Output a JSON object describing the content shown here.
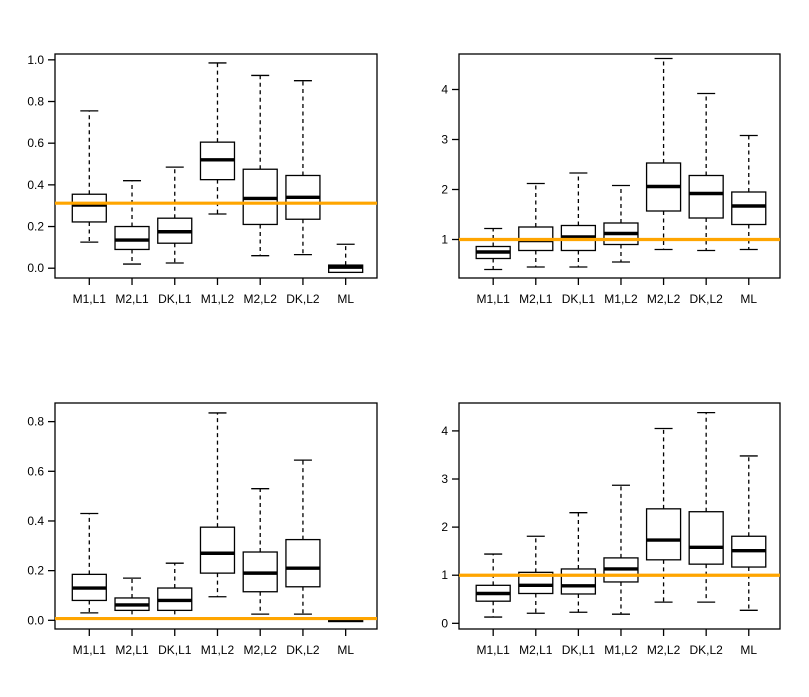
{
  "figure": {
    "background_color": "#ffffff",
    "axis_color": "#000000",
    "box_fill_color": "#ffffff",
    "box_stroke_color": "#000000",
    "median_color": "#000000",
    "reference_line_color": "#FFA500"
  },
  "chart_data": [
    {
      "type": "boxplot",
      "position": "top-left",
      "title": "",
      "xlabel": "",
      "ylabel": "",
      "grid": false,
      "legend": false,
      "categories": [
        "M1,L1",
        "M2,L1",
        "DK,L1",
        "M1,L2",
        "M2,L2",
        "DK,L2",
        "ML"
      ],
      "ytick_values": [
        0.0,
        0.2,
        0.4,
        0.6,
        0.8,
        1.0
      ],
      "ytick_labels": [
        "0.0",
        "0.2",
        "0.4",
        "0.6",
        "0.8",
        "1.0"
      ],
      "ylim": [
        -0.047,
        1.028
      ],
      "reference_line": 0.312,
      "boxes": [
        {
          "label": "M1,L1",
          "lower_whisker": 0.125,
          "q1": 0.222,
          "median": 0.303,
          "q3": 0.355,
          "upper_whisker": 0.755
        },
        {
          "label": "M2,L1",
          "lower_whisker": 0.02,
          "q1": 0.09,
          "median": 0.135,
          "q3": 0.2,
          "upper_whisker": 0.42
        },
        {
          "label": "DK,L1",
          "lower_whisker": 0.025,
          "q1": 0.12,
          "median": 0.175,
          "q3": 0.24,
          "upper_whisker": 0.485
        },
        {
          "label": "M1,L2",
          "lower_whisker": 0.26,
          "q1": 0.425,
          "median": 0.52,
          "q3": 0.605,
          "upper_whisker": 0.985
        },
        {
          "label": "M2,L2",
          "lower_whisker": 0.06,
          "q1": 0.21,
          "median": 0.335,
          "q3": 0.475,
          "upper_whisker": 0.925
        },
        {
          "label": "DK,L2",
          "lower_whisker": 0.065,
          "q1": 0.235,
          "median": 0.34,
          "q3": 0.445,
          "upper_whisker": 0.9
        },
        {
          "label": "ML",
          "lower_whisker": -0.02,
          "q1": -0.02,
          "median": 0.005,
          "q3": 0.015,
          "upper_whisker": 0.115
        }
      ]
    },
    {
      "type": "boxplot",
      "position": "top-right",
      "title": "",
      "xlabel": "",
      "ylabel": "",
      "grid": false,
      "legend": false,
      "categories": [
        "M1,L1",
        "M2,L1",
        "DK,L1",
        "M1,L2",
        "M2,L2",
        "DK,L2",
        "ML"
      ],
      "ytick_values": [
        1,
        2,
        3,
        4
      ],
      "ytick_labels": [
        "1",
        "2",
        "3",
        "4"
      ],
      "ylim": [
        0.23,
        4.71
      ],
      "reference_line": 1.0,
      "boxes": [
        {
          "label": "M1,L1",
          "lower_whisker": 0.4,
          "q1": 0.62,
          "median": 0.75,
          "q3": 0.86,
          "upper_whisker": 1.22
        },
        {
          "label": "M2,L1",
          "lower_whisker": 0.45,
          "q1": 0.78,
          "median": 0.98,
          "q3": 1.25,
          "upper_whisker": 2.12
        },
        {
          "label": "DK,L1",
          "lower_whisker": 0.45,
          "q1": 0.78,
          "median": 1.05,
          "q3": 1.28,
          "upper_whisker": 2.33
        },
        {
          "label": "M1,L2",
          "lower_whisker": 0.55,
          "q1": 0.9,
          "median": 1.12,
          "q3": 1.33,
          "upper_whisker": 2.08
        },
        {
          "label": "M2,L2",
          "lower_whisker": 0.8,
          "q1": 1.57,
          "median": 2.06,
          "q3": 2.53,
          "upper_whisker": 4.62
        },
        {
          "label": "DK,L2",
          "lower_whisker": 0.78,
          "q1": 1.43,
          "median": 1.92,
          "q3": 2.28,
          "upper_whisker": 3.92
        },
        {
          "label": "ML",
          "lower_whisker": 0.8,
          "q1": 1.3,
          "median": 1.67,
          "q3": 1.95,
          "upper_whisker": 3.08
        }
      ]
    },
    {
      "type": "boxplot",
      "position": "bottom-left",
      "title": "",
      "xlabel": "",
      "ylabel": "",
      "grid": false,
      "legend": false,
      "categories": [
        "M1,L1",
        "M2,L1",
        "DK,L1",
        "M1,L2",
        "M2,L2",
        "DK,L2",
        "ML"
      ],
      "ytick_values": [
        0.0,
        0.2,
        0.4,
        0.6,
        0.8
      ],
      "ytick_labels": [
        "0.0",
        "0.2",
        "0.4",
        "0.6",
        "0.8"
      ],
      "ylim": [
        -0.035,
        0.875
      ],
      "reference_line": 0.007,
      "boxes": [
        {
          "label": "M1,L1",
          "lower_whisker": 0.03,
          "q1": 0.08,
          "median": 0.13,
          "q3": 0.185,
          "upper_whisker": 0.43
        },
        {
          "label": "M2,L1",
          "lower_whisker": 0.01,
          "q1": 0.04,
          "median": 0.062,
          "q3": 0.09,
          "upper_whisker": 0.17
        },
        {
          "label": "DK,L1",
          "lower_whisker": 0.01,
          "q1": 0.04,
          "median": 0.08,
          "q3": 0.13,
          "upper_whisker": 0.23
        },
        {
          "label": "M1,L2",
          "lower_whisker": 0.095,
          "q1": 0.19,
          "median": 0.27,
          "q3": 0.375,
          "upper_whisker": 0.835
        },
        {
          "label": "M2,L2",
          "lower_whisker": 0.025,
          "q1": 0.115,
          "median": 0.19,
          "q3": 0.275,
          "upper_whisker": 0.53
        },
        {
          "label": "DK,L2",
          "lower_whisker": 0.025,
          "q1": 0.135,
          "median": 0.21,
          "q3": 0.325,
          "upper_whisker": 0.645
        },
        {
          "label": "ML",
          "lower_whisker": -0.005,
          "q1": -0.005,
          "median": 0.0,
          "q3": 0.005,
          "upper_whisker": 0.005
        }
      ]
    },
    {
      "type": "boxplot",
      "position": "bottom-right",
      "title": "",
      "xlabel": "",
      "ylabel": "",
      "grid": false,
      "legend": false,
      "categories": [
        "M1,L1",
        "M2,L1",
        "DK,L1",
        "M1,L2",
        "M2,L2",
        "DK,L2",
        "ML"
      ],
      "ytick_values": [
        0,
        1,
        2,
        3,
        4
      ],
      "ytick_labels": [
        "0",
        "1",
        "2",
        "3",
        "4"
      ],
      "ylim": [
        -0.118,
        4.58
      ],
      "reference_line": 1.0,
      "boxes": [
        {
          "label": "M1,L1",
          "lower_whisker": 0.13,
          "q1": 0.46,
          "median": 0.62,
          "q3": 0.79,
          "upper_whisker": 1.44
        },
        {
          "label": "M2,L1",
          "lower_whisker": 0.21,
          "q1": 0.62,
          "median": 0.79,
          "q3": 1.06,
          "upper_whisker": 1.81
        },
        {
          "label": "DK,L1",
          "lower_whisker": 0.23,
          "q1": 0.61,
          "median": 0.78,
          "q3": 1.13,
          "upper_whisker": 2.3
        },
        {
          "label": "M1,L2",
          "lower_whisker": 0.19,
          "q1": 0.86,
          "median": 1.13,
          "q3": 1.36,
          "upper_whisker": 2.87
        },
        {
          "label": "M2,L2",
          "lower_whisker": 0.44,
          "q1": 1.32,
          "median": 1.73,
          "q3": 2.38,
          "upper_whisker": 4.05
        },
        {
          "label": "DK,L2",
          "lower_whisker": 0.44,
          "q1": 1.23,
          "median": 1.58,
          "q3": 2.32,
          "upper_whisker": 4.38
        },
        {
          "label": "ML",
          "lower_whisker": 0.27,
          "q1": 1.17,
          "median": 1.51,
          "q3": 1.81,
          "upper_whisker": 3.48
        }
      ]
    }
  ]
}
